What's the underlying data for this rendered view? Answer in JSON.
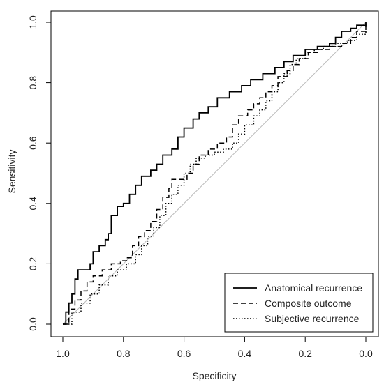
{
  "chart_data": {
    "type": "line",
    "title": "",
    "xlabel": "Specificity",
    "ylabel": "Sensitivity",
    "xlim": [
      1.0,
      0.0
    ],
    "ylim": [
      0.0,
      1.0
    ],
    "x_reversed": true,
    "x_ticks": [
      "1.0",
      "0.8",
      "0.6",
      "0.4",
      "0.2",
      "0.0"
    ],
    "y_ticks": [
      "0.0",
      "0.2",
      "0.4",
      "0.6",
      "0.8",
      "1.0"
    ],
    "grid": false,
    "legend_position": "bottom-right",
    "reference_line": {
      "from": [
        1.0,
        0.0
      ],
      "to": [
        0.0,
        1.0
      ],
      "color": "#bbbbbb"
    },
    "series": [
      {
        "name": "Anatomical recurrence",
        "line_style": "solid",
        "color": "#000000",
        "points": [
          [
            1.0,
            0.0
          ],
          [
            0.99,
            0.04
          ],
          [
            0.98,
            0.07
          ],
          [
            0.97,
            0.1
          ],
          [
            0.96,
            0.15
          ],
          [
            0.95,
            0.18
          ],
          [
            0.91,
            0.2
          ],
          [
            0.9,
            0.24
          ],
          [
            0.88,
            0.26
          ],
          [
            0.86,
            0.28
          ],
          [
            0.85,
            0.3
          ],
          [
            0.84,
            0.36
          ],
          [
            0.82,
            0.39
          ],
          [
            0.8,
            0.4
          ],
          [
            0.78,
            0.43
          ],
          [
            0.76,
            0.46
          ],
          [
            0.74,
            0.49
          ],
          [
            0.71,
            0.51
          ],
          [
            0.69,
            0.53
          ],
          [
            0.67,
            0.56
          ],
          [
            0.64,
            0.58
          ],
          [
            0.62,
            0.62
          ],
          [
            0.6,
            0.65
          ],
          [
            0.57,
            0.68
          ],
          [
            0.55,
            0.7
          ],
          [
            0.52,
            0.72
          ],
          [
            0.49,
            0.75
          ],
          [
            0.45,
            0.77
          ],
          [
            0.41,
            0.79
          ],
          [
            0.38,
            0.81
          ],
          [
            0.34,
            0.83
          ],
          [
            0.3,
            0.85
          ],
          [
            0.27,
            0.87
          ],
          [
            0.24,
            0.89
          ],
          [
            0.2,
            0.91
          ],
          [
            0.16,
            0.92
          ],
          [
            0.12,
            0.93
          ],
          [
            0.1,
            0.95
          ],
          [
            0.08,
            0.97
          ],
          [
            0.05,
            0.98
          ],
          [
            0.03,
            0.99
          ],
          [
            0.0,
            1.0
          ]
        ]
      },
      {
        "name": "Composite outcome",
        "line_style": "dashed",
        "color": "#000000",
        "points": [
          [
            1.0,
            0.0
          ],
          [
            0.98,
            0.05
          ],
          [
            0.96,
            0.08
          ],
          [
            0.94,
            0.11
          ],
          [
            0.92,
            0.14
          ],
          [
            0.9,
            0.16
          ],
          [
            0.87,
            0.18
          ],
          [
            0.84,
            0.2
          ],
          [
            0.81,
            0.21
          ],
          [
            0.79,
            0.22
          ],
          [
            0.77,
            0.26
          ],
          [
            0.75,
            0.29
          ],
          [
            0.73,
            0.31
          ],
          [
            0.71,
            0.34
          ],
          [
            0.69,
            0.38
          ],
          [
            0.67,
            0.42
          ],
          [
            0.65,
            0.45
          ],
          [
            0.64,
            0.48
          ],
          [
            0.61,
            0.48
          ],
          [
            0.59,
            0.5
          ],
          [
            0.57,
            0.53
          ],
          [
            0.55,
            0.56
          ],
          [
            0.52,
            0.58
          ],
          [
            0.49,
            0.6
          ],
          [
            0.46,
            0.62
          ],
          [
            0.44,
            0.66
          ],
          [
            0.42,
            0.69
          ],
          [
            0.39,
            0.71
          ],
          [
            0.37,
            0.73
          ],
          [
            0.35,
            0.75
          ],
          [
            0.33,
            0.77
          ],
          [
            0.31,
            0.79
          ],
          [
            0.29,
            0.82
          ],
          [
            0.26,
            0.84
          ],
          [
            0.24,
            0.86
          ],
          [
            0.22,
            0.88
          ],
          [
            0.19,
            0.9
          ],
          [
            0.16,
            0.91
          ],
          [
            0.12,
            0.92
          ],
          [
            0.08,
            0.93
          ],
          [
            0.05,
            0.95
          ],
          [
            0.03,
            0.97
          ],
          [
            0.0,
            1.0
          ]
        ]
      },
      {
        "name": "Subjective recurrence",
        "line_style": "dotted",
        "color": "#000000",
        "points": [
          [
            1.0,
            0.0
          ],
          [
            0.97,
            0.04
          ],
          [
            0.94,
            0.07
          ],
          [
            0.91,
            0.1
          ],
          [
            0.88,
            0.13
          ],
          [
            0.85,
            0.16
          ],
          [
            0.82,
            0.18
          ],
          [
            0.79,
            0.2
          ],
          [
            0.76,
            0.23
          ],
          [
            0.74,
            0.26
          ],
          [
            0.72,
            0.29
          ],
          [
            0.7,
            0.32
          ],
          [
            0.68,
            0.36
          ],
          [
            0.66,
            0.4
          ],
          [
            0.64,
            0.43
          ],
          [
            0.62,
            0.46
          ],
          [
            0.6,
            0.5
          ],
          [
            0.58,
            0.53
          ],
          [
            0.56,
            0.55
          ],
          [
            0.53,
            0.56
          ],
          [
            0.5,
            0.57
          ],
          [
            0.47,
            0.58
          ],
          [
            0.44,
            0.6
          ],
          [
            0.42,
            0.63
          ],
          [
            0.4,
            0.66
          ],
          [
            0.37,
            0.69
          ],
          [
            0.35,
            0.71
          ],
          [
            0.33,
            0.74
          ],
          [
            0.31,
            0.77
          ],
          [
            0.29,
            0.8
          ],
          [
            0.27,
            0.83
          ],
          [
            0.25,
            0.86
          ],
          [
            0.23,
            0.88
          ],
          [
            0.2,
            0.9
          ],
          [
            0.17,
            0.91
          ],
          [
            0.14,
            0.92
          ],
          [
            0.1,
            0.93
          ],
          [
            0.06,
            0.94
          ],
          [
            0.03,
            0.96
          ],
          [
            0.0,
            1.0
          ]
        ]
      }
    ]
  }
}
